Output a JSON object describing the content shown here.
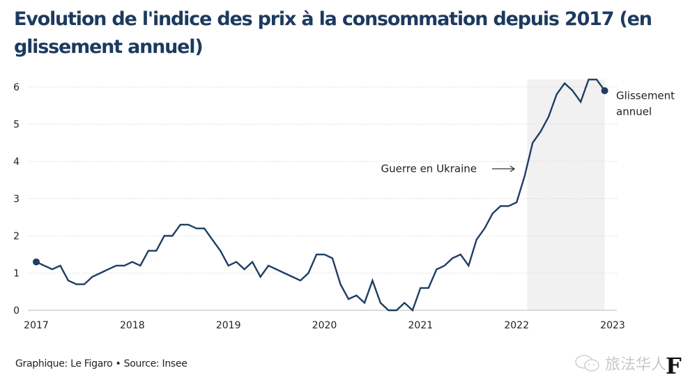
{
  "chart_data": {
    "type": "line",
    "title": "Evolution de l'indice des prix à la consommation depuis 2017 (en glissement annuel)",
    "xlabel": "",
    "ylabel": "",
    "ylim": [
      0,
      6
    ],
    "xlim": [
      2017,
      2023
    ],
    "yticks": [
      0,
      1,
      2,
      3,
      4,
      5,
      6
    ],
    "xticks": [
      "2017",
      "2018",
      "2019",
      "2020",
      "2021",
      "2022",
      "2023"
    ],
    "grid": "horizontal-dotted",
    "series": [
      {
        "name": "Glissement annuel",
        "color": "#1e3d63",
        "x": [
          2017.0,
          2017.083,
          2017.167,
          2017.25,
          2017.333,
          2017.417,
          2017.5,
          2017.583,
          2017.667,
          2017.75,
          2017.833,
          2017.917,
          2018.0,
          2018.083,
          2018.167,
          2018.25,
          2018.333,
          2018.417,
          2018.5,
          2018.583,
          2018.667,
          2018.75,
          2018.833,
          2018.917,
          2019.0,
          2019.083,
          2019.167,
          2019.25,
          2019.333,
          2019.417,
          2019.5,
          2019.583,
          2019.667,
          2019.75,
          2019.833,
          2019.917,
          2020.0,
          2020.083,
          2020.167,
          2020.25,
          2020.333,
          2020.417,
          2020.5,
          2020.583,
          2020.667,
          2020.75,
          2020.833,
          2020.917,
          2021.0,
          2021.083,
          2021.167,
          2021.25,
          2021.333,
          2021.417,
          2021.5,
          2021.583,
          2021.667,
          2021.75,
          2021.833,
          2021.917,
          2022.0,
          2022.083,
          2022.167,
          2022.25,
          2022.333,
          2022.417,
          2022.5,
          2022.583,
          2022.667,
          2022.75,
          2022.833,
          2022.917
        ],
        "values": [
          1.3,
          1.2,
          1.1,
          1.2,
          0.8,
          0.7,
          0.7,
          0.9,
          1.0,
          1.1,
          1.2,
          1.2,
          1.3,
          1.2,
          1.6,
          1.6,
          2.0,
          2.0,
          2.3,
          2.3,
          2.2,
          2.2,
          1.9,
          1.6,
          1.2,
          1.3,
          1.1,
          1.3,
          0.9,
          1.2,
          1.1,
          1.0,
          0.9,
          0.8,
          1.0,
          1.5,
          1.5,
          1.4,
          0.7,
          0.3,
          0.4,
          0.2,
          0.8,
          0.2,
          0.0,
          0.0,
          0.2,
          0.0,
          0.6,
          0.6,
          1.1,
          1.2,
          1.4,
          1.5,
          1.2,
          1.9,
          2.2,
          2.6,
          2.8,
          2.8,
          2.9,
          3.6,
          4.5,
          4.8,
          5.2,
          5.8,
          6.1,
          5.9,
          5.6,
          6.2,
          6.2,
          5.9
        ]
      }
    ],
    "shaded_region": {
      "x_start": 2022.11,
      "x_end": 2022.917,
      "label": "Guerre en Ukraine",
      "color": "#f1f1f1"
    },
    "annotations": [
      {
        "text": "Guerre en Ukraine",
        "arrow": "right"
      },
      {
        "text_lines": [
          "Glissement",
          "annuel"
        ],
        "target": "last-point"
      }
    ],
    "legend": "none"
  },
  "footer": {
    "credit": "Graphique: Le Figaro • Source: Insee"
  },
  "watermark": {
    "text": "旅法华人",
    "icon": "wechat-icon",
    "logo": "F"
  }
}
